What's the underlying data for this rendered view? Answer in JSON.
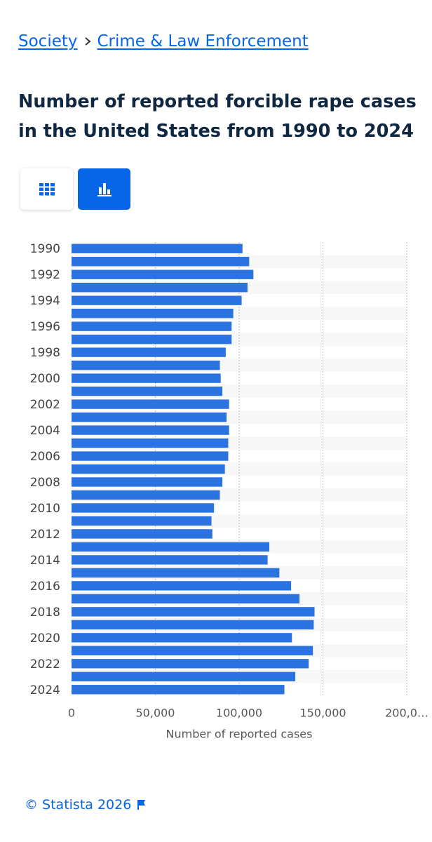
{
  "breadcrumb": [
    "Society",
    "Crime & Law Enforcement"
  ],
  "chart_data": {
    "type": "bar",
    "orientation": "horizontal",
    "title": "Number of reported forcible rape cases in the United States from 1990 to 2024",
    "categories": [
      "1990",
      null,
      "1992",
      null,
      "1994",
      null,
      "1996",
      null,
      "1998",
      null,
      "2000",
      null,
      "2002",
      null,
      "2004",
      null,
      "2006",
      null,
      "2008",
      null,
      "2010",
      null,
      "2012",
      null,
      "2014",
      null,
      "2016",
      null,
      "2018",
      null,
      "2020",
      null,
      "2022",
      null,
      "2024"
    ],
    "values": [
      102000,
      106000,
      108500,
      105000,
      101500,
      96500,
      95500,
      95500,
      92000,
      88500,
      89000,
      90000,
      94000,
      92500,
      94000,
      93500,
      93500,
      91500,
      90000,
      88500,
      85000,
      83500,
      84000,
      118000,
      117000,
      124000,
      131000,
      136000,
      145000,
      144500,
      131500,
      144000,
      141500,
      133500,
      127000
    ],
    "color": "#2b73e1",
    "xlabel": "Number of reported cases",
    "xlim": [
      0,
      200000
    ],
    "xticks": [
      0,
      {
        "value": 50000,
        "label": "50,000"
      },
      {
        "value": 100000,
        "label": "100,000"
      },
      {
        "value": 150000,
        "label": "150,000"
      },
      {
        "value": 200000,
        "label": "200,0…"
      }
    ],
    "grid": true
  },
  "footer": "© Statista 2026"
}
